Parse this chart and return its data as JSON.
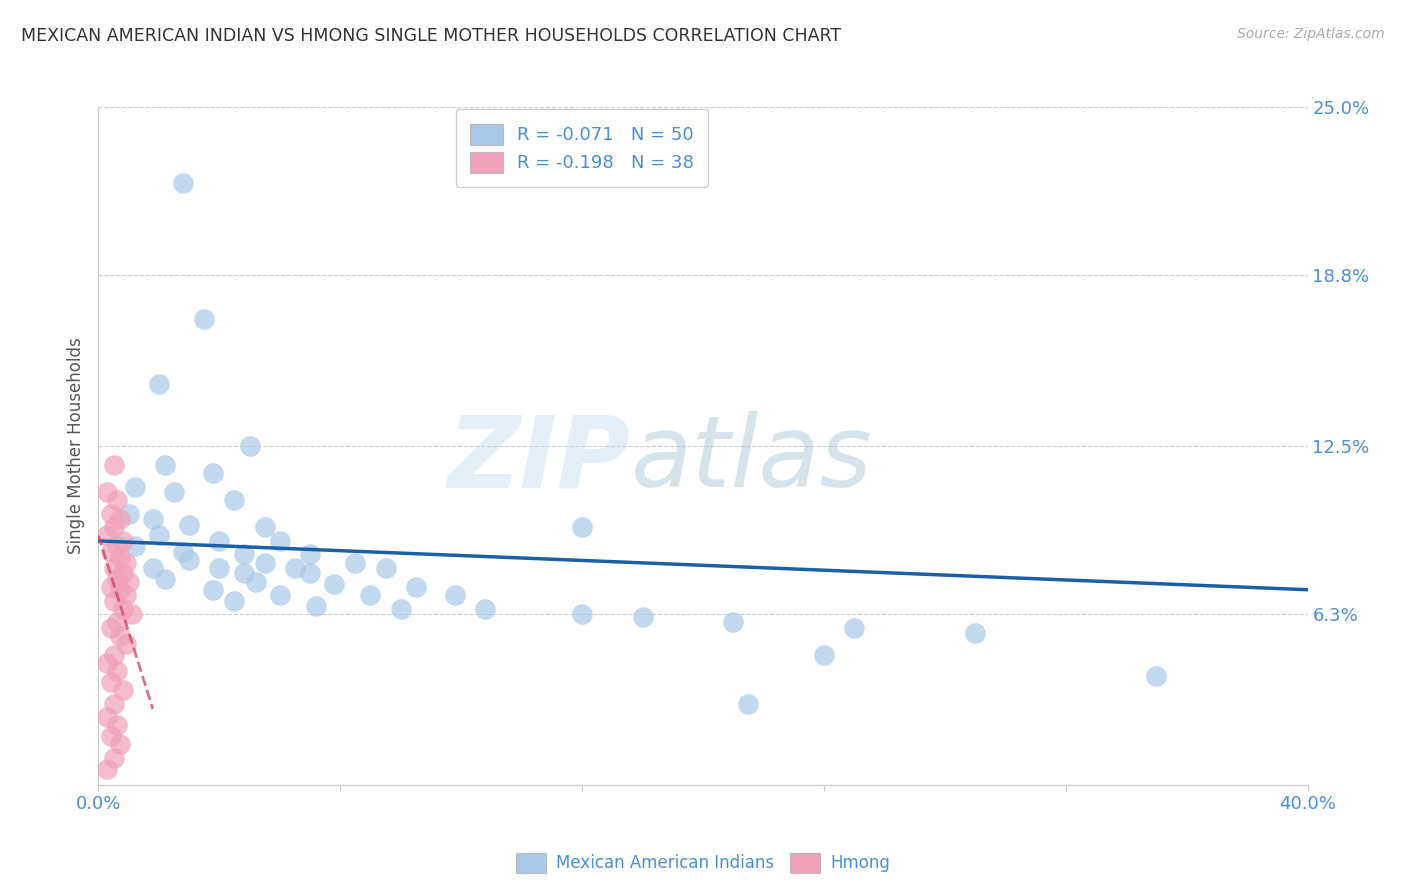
{
  "title": "MEXICAN AMERICAN INDIAN VS HMONG SINGLE MOTHER HOUSEHOLDS CORRELATION CHART",
  "source": "Source: ZipAtlas.com",
  "ylabel": "Single Mother Households",
  "xlim": [
    0.0,
    0.4
  ],
  "ylim": [
    0.0,
    0.25
  ],
  "ytick_labels_right": [
    "25.0%",
    "18.8%",
    "12.5%",
    "6.3%"
  ],
  "ytick_values_right": [
    0.25,
    0.188,
    0.125,
    0.063
  ],
  "blue_color": "#a8c8e8",
  "pink_color": "#f0a0b8",
  "blue_line_color": "#1a5faa",
  "pink_line_color": "#d04060",
  "watermark_zip": "ZIP",
  "watermark_atlas": "atlas",
  "legend_label1": "Mexican American Indians",
  "legend_label2": "Hmong",
  "blue_scatter": [
    [
      0.028,
      0.222
    ],
    [
      0.035,
      0.172
    ],
    [
      0.02,
      0.148
    ],
    [
      0.05,
      0.125
    ],
    [
      0.022,
      0.118
    ],
    [
      0.038,
      0.115
    ],
    [
      0.012,
      0.11
    ],
    [
      0.025,
      0.108
    ],
    [
      0.045,
      0.105
    ],
    [
      0.01,
      0.1
    ],
    [
      0.018,
      0.098
    ],
    [
      0.03,
      0.096
    ],
    [
      0.055,
      0.095
    ],
    [
      0.02,
      0.092
    ],
    [
      0.04,
      0.09
    ],
    [
      0.06,
      0.09
    ],
    [
      0.012,
      0.088
    ],
    [
      0.028,
      0.086
    ],
    [
      0.048,
      0.085
    ],
    [
      0.07,
      0.085
    ],
    [
      0.03,
      0.083
    ],
    [
      0.055,
      0.082
    ],
    [
      0.085,
      0.082
    ],
    [
      0.018,
      0.08
    ],
    [
      0.04,
      0.08
    ],
    [
      0.065,
      0.08
    ],
    [
      0.095,
      0.08
    ],
    [
      0.048,
      0.078
    ],
    [
      0.07,
      0.078
    ],
    [
      0.022,
      0.076
    ],
    [
      0.052,
      0.075
    ],
    [
      0.078,
      0.074
    ],
    [
      0.105,
      0.073
    ],
    [
      0.038,
      0.072
    ],
    [
      0.06,
      0.07
    ],
    [
      0.09,
      0.07
    ],
    [
      0.118,
      0.07
    ],
    [
      0.045,
      0.068
    ],
    [
      0.072,
      0.066
    ],
    [
      0.1,
      0.065
    ],
    [
      0.128,
      0.065
    ],
    [
      0.16,
      0.063
    ],
    [
      0.18,
      0.062
    ],
    [
      0.21,
      0.06
    ],
    [
      0.25,
      0.058
    ],
    [
      0.29,
      0.056
    ],
    [
      0.16,
      0.095
    ],
    [
      0.24,
      0.048
    ],
    [
      0.35,
      0.04
    ],
    [
      0.215,
      0.03
    ]
  ],
  "pink_scatter": [
    [
      0.005,
      0.118
    ],
    [
      0.003,
      0.108
    ],
    [
      0.006,
      0.105
    ],
    [
      0.004,
      0.1
    ],
    [
      0.007,
      0.098
    ],
    [
      0.005,
      0.095
    ],
    [
      0.003,
      0.092
    ],
    [
      0.008,
      0.09
    ],
    [
      0.006,
      0.088
    ],
    [
      0.004,
      0.086
    ],
    [
      0.007,
      0.084
    ],
    [
      0.009,
      0.082
    ],
    [
      0.005,
      0.08
    ],
    [
      0.008,
      0.078
    ],
    [
      0.006,
      0.076
    ],
    [
      0.01,
      0.075
    ],
    [
      0.004,
      0.073
    ],
    [
      0.007,
      0.072
    ],
    [
      0.009,
      0.07
    ],
    [
      0.005,
      0.068
    ],
    [
      0.008,
      0.065
    ],
    [
      0.011,
      0.063
    ],
    [
      0.006,
      0.06
    ],
    [
      0.004,
      0.058
    ],
    [
      0.007,
      0.055
    ],
    [
      0.009,
      0.052
    ],
    [
      0.005,
      0.048
    ],
    [
      0.003,
      0.045
    ],
    [
      0.006,
      0.042
    ],
    [
      0.004,
      0.038
    ],
    [
      0.008,
      0.035
    ],
    [
      0.005,
      0.03
    ],
    [
      0.003,
      0.025
    ],
    [
      0.006,
      0.022
    ],
    [
      0.004,
      0.018
    ],
    [
      0.007,
      0.015
    ],
    [
      0.005,
      0.01
    ],
    [
      0.003,
      0.006
    ]
  ],
  "blue_trend_x": [
    0.0,
    0.4
  ],
  "blue_trend_y": [
    0.09,
    0.072
  ],
  "pink_trend_x": [
    0.0,
    0.018
  ],
  "pink_trend_y": [
    0.092,
    0.028
  ]
}
